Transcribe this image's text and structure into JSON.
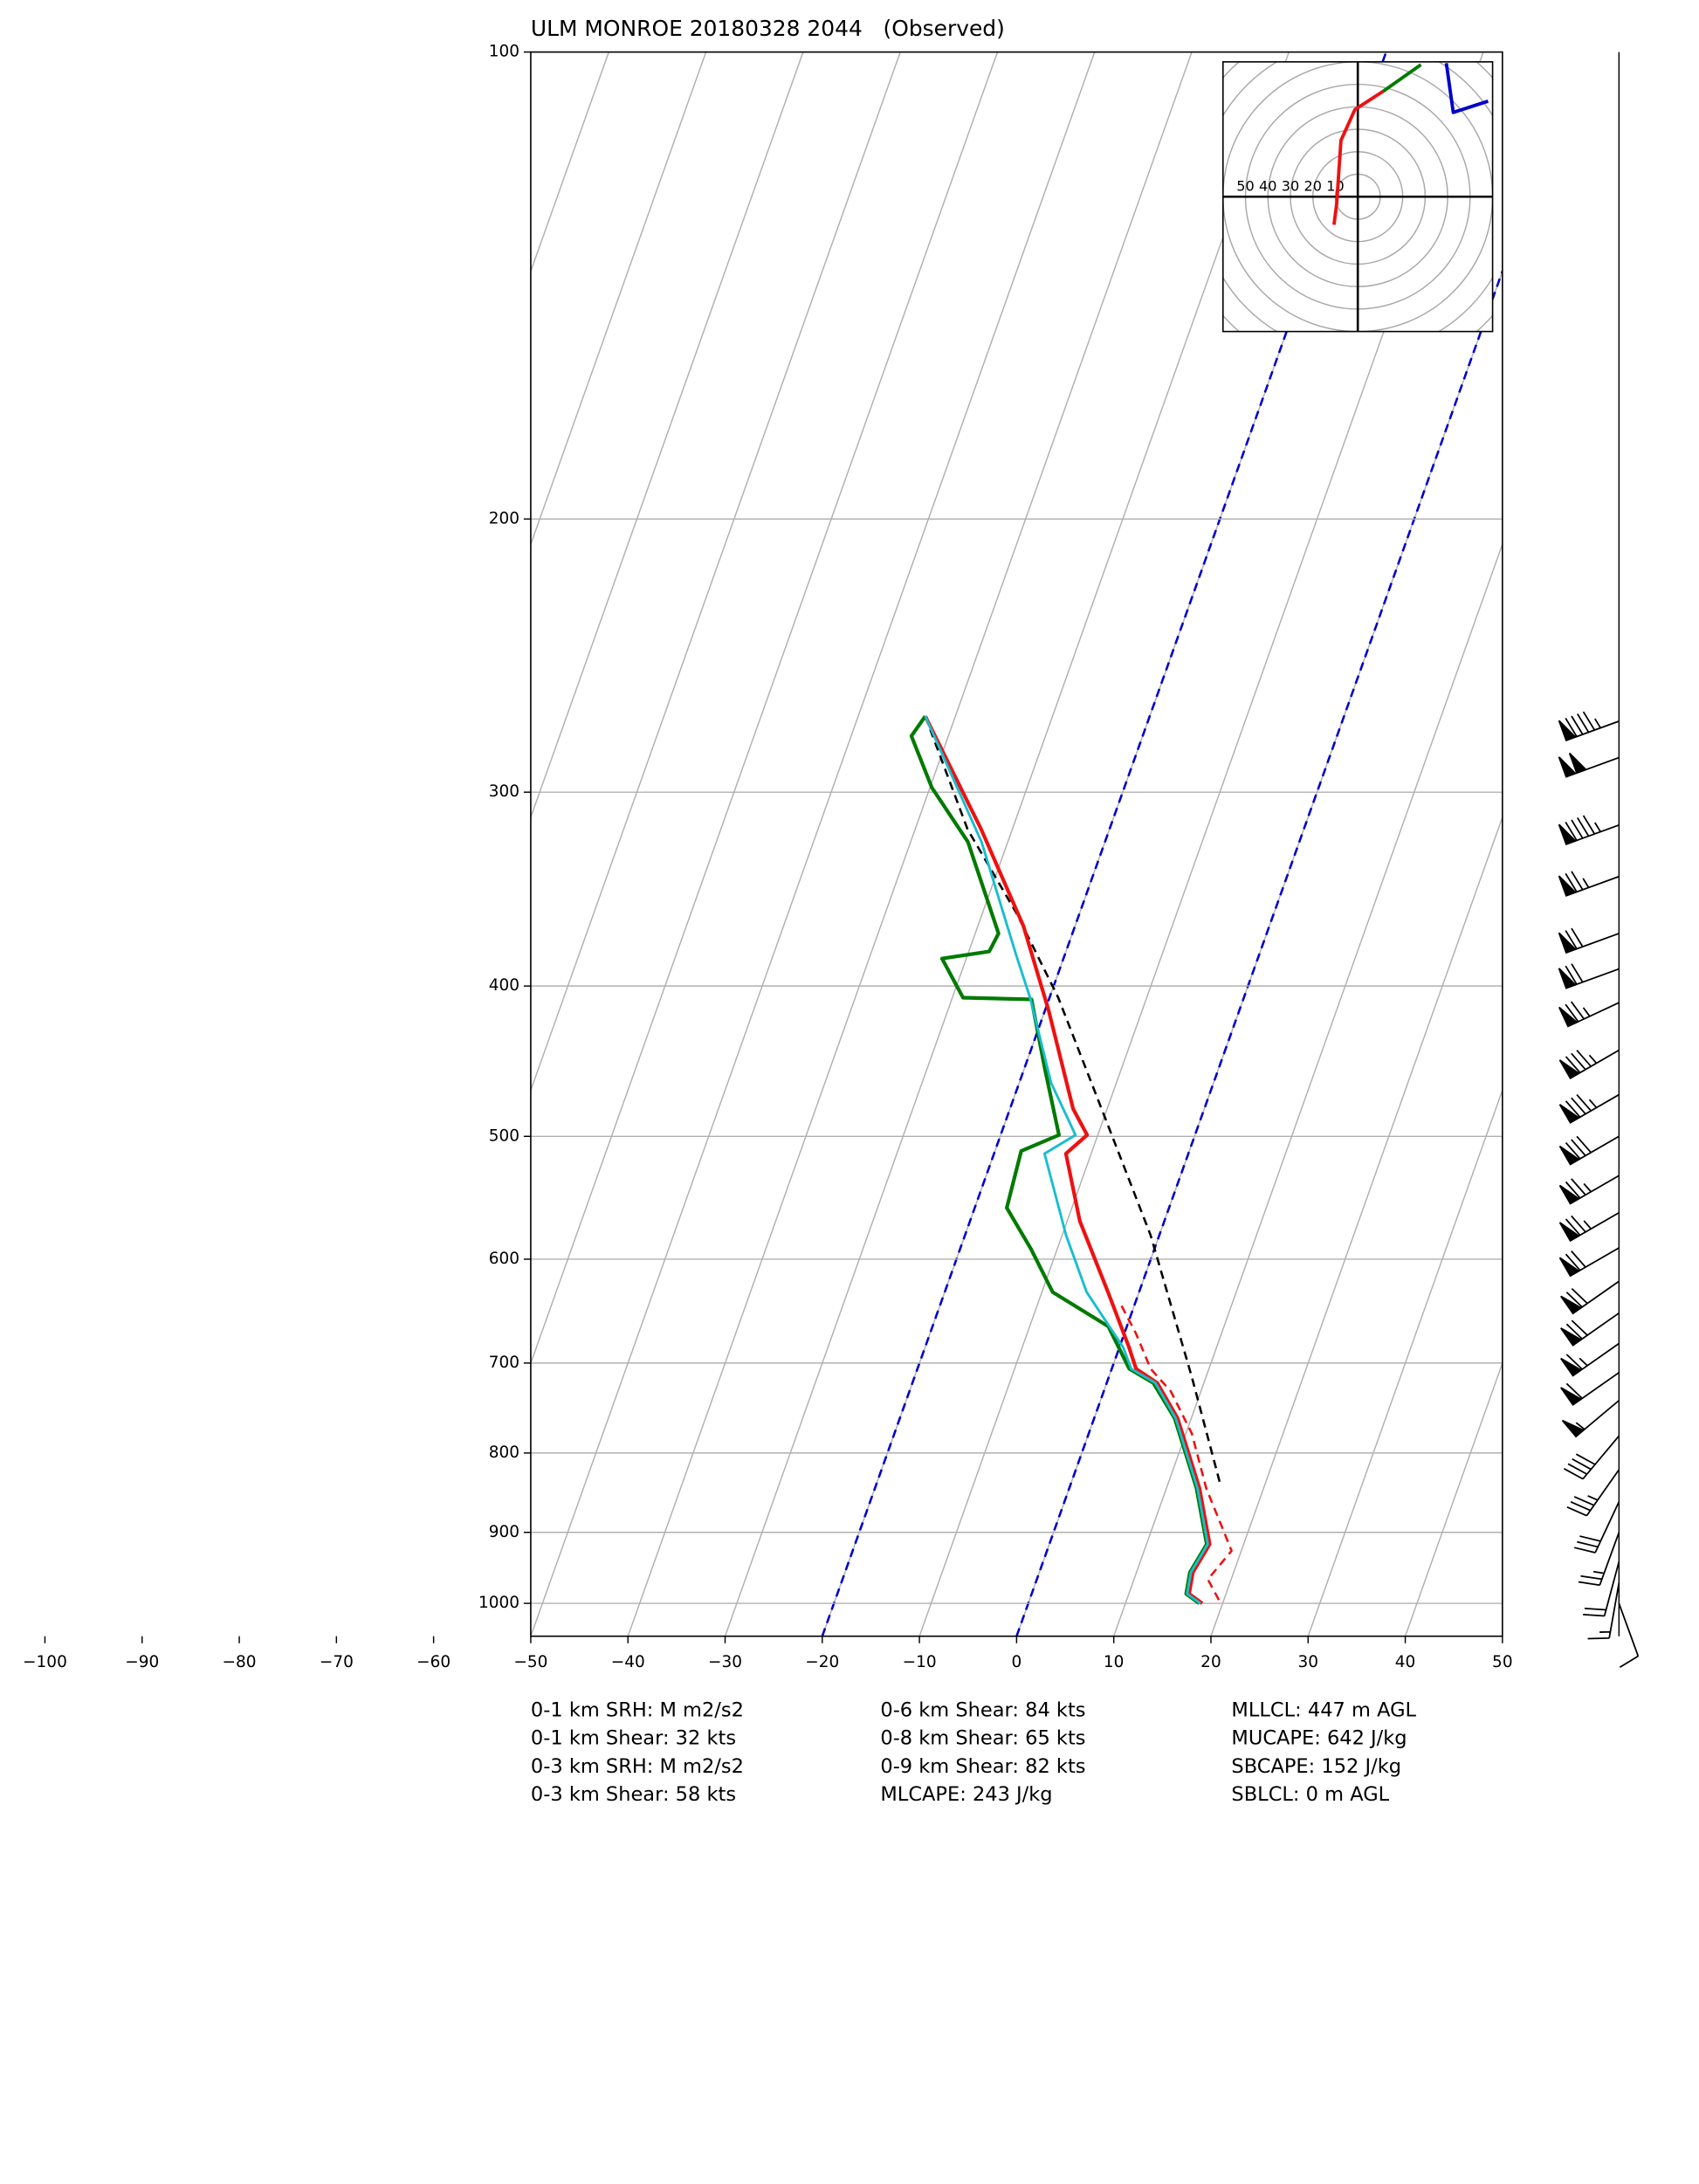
{
  "chart_data": {
    "type": "skewt",
    "title": "ULM MONROE 20180328 2044   (Observed)",
    "xlim": [
      -50,
      50
    ],
    "ylim": [
      1050,
      100
    ],
    "log_y": true,
    "grid": true,
    "xticks": [
      {
        "value": -100,
        "label": "−100"
      },
      {
        "value": -90,
        "label": "−90"
      },
      {
        "value": -80,
        "label": "−80"
      },
      {
        "value": -70,
        "label": "−70"
      },
      {
        "value": -60,
        "label": "−60"
      },
      {
        "value": -50,
        "label": "−50"
      },
      {
        "value": -40,
        "label": "−40"
      },
      {
        "value": -30,
        "label": "−30"
      },
      {
        "value": -20,
        "label": "−20"
      },
      {
        "value": -10,
        "label": "−10"
      },
      0,
      10,
      20,
      30,
      40,
      50
    ],
    "yticks": [
      100,
      200,
      300,
      400,
      500,
      600,
      700,
      800,
      900,
      1000
    ],
    "highlight_isotherms": {
      "values": [
        -20,
        0
      ],
      "color": "#0000cc"
    },
    "series": [
      {
        "color": "#ee1111",
        "style": "dashed",
        "width": 1.6,
        "pressure": [
          643,
          670,
          706,
          730,
          777,
          843,
          925,
          965,
          1000
        ],
        "values": [
          -1.3,
          1.2,
          4.0,
          6.9,
          10.6,
          14.1,
          19.0,
          17.6,
          19.8
        ]
      },
      {
        "color": "#000000",
        "style": "dashed",
        "width": 1.6,
        "pressure": [
          268,
          317,
          359,
          407,
          491,
          579,
          714,
          840
        ],
        "values": [
          -43.1,
          -34.6,
          -26.5,
          -19.1,
          -9.4,
          -0.9,
          8.5,
          15.5
        ]
      },
      {
        "color": "#ee1111",
        "style": "solid",
        "width": 2.6,
        "pressure": [
          268,
          317,
          366,
          415,
          480,
          499,
          513,
          567,
          630,
          684,
          706,
          721,
          760,
          843,
          916,
          955,
          986,
          1000
        ],
        "values": [
          -43.1,
          -33.2,
          -25.3,
          -19.6,
          -13.5,
          -11.1,
          -12.6,
          -8.7,
          -3.2,
          1.0,
          2.5,
          5.2,
          8.6,
          13.4,
          16.5,
          15.8,
          16.2,
          17.9
        ]
      },
      {
        "color": "#007a00",
        "style": "solid",
        "width": 2.6,
        "pressure": [
          268,
          276,
          298,
          323,
          370,
          380,
          384,
          407,
          408,
          452,
          499,
          511,
          556,
          591,
          630,
          663,
          706,
          721,
          760,
          843,
          916,
          955,
          986,
          1000
        ],
        "values": [
          -43.1,
          -43.8,
          -39.8,
          -34.1,
          -27.6,
          -27.9,
          -32.5,
          -28.9,
          -21.8,
          -17.9,
          -14.0,
          -17.3,
          -16.7,
          -12.7,
          -8.9,
          -1.9,
          1.8,
          4.8,
          8.3,
          13.1,
          16.2,
          15.5,
          15.9,
          17.6
        ]
      },
      {
        "color": "#17becf",
        "style": "solid",
        "width": 1.8,
        "pressure": [
          268,
          323,
          382,
          407,
          462,
          499,
          513,
          579,
          630,
          684,
          706,
          721,
          760,
          843,
          916,
          955,
          986,
          1000
        ],
        "values": [
          -43.1,
          -32.7,
          -25.0,
          -22.0,
          -16.7,
          -12.3,
          -14.8,
          -9.6,
          -5.4,
          0.4,
          2.0,
          5.0,
          8.4,
          13.2,
          16.3,
          15.6,
          16.0,
          17.7
        ]
      }
    ],
    "barbs": {
      "pressure": [
        270,
        285,
        315,
        340,
        370,
        390,
        410,
        440,
        470,
        500,
        530,
        560,
        590,
        620,
        650,
        680,
        710,
        740,
        780,
        820,
        860,
        900,
        940,
        970,
        1000
      ],
      "speed": [
        95,
        100,
        95,
        75,
        70,
        70,
        75,
        85,
        85,
        80,
        75,
        75,
        70,
        70,
        70,
        65,
        60,
        55,
        40,
        35,
        30,
        25,
        20,
        15,
        10
      ],
      "direction": [
        250,
        250,
        250,
        250,
        250,
        250,
        245,
        240,
        240,
        240,
        240,
        240,
        240,
        235,
        235,
        235,
        235,
        230,
        220,
        215,
        205,
        200,
        195,
        190,
        160
      ]
    },
    "hodograph": {
      "rings": [
        10,
        20,
        30,
        40,
        50,
        60,
        70,
        80
      ],
      "traces": [
        {
          "color": "#ee1111",
          "u": [
            -10.6,
            -9.4,
            -7.5,
            -1.3,
            11.3
          ],
          "v": [
            -12.5,
            -3.1,
            25,
            38.75,
            46.9
          ]
        },
        {
          "color": "#007a00",
          "u": [
            11.3,
            28.1
          ],
          "v": [
            46.9,
            58.75
          ]
        },
        {
          "color": "#0000cc",
          "u": [
            39.4,
            42.5,
            58
          ],
          "v": [
            59.4,
            37.5,
            42.5
          ]
        }
      ]
    },
    "stats": [
      [
        "0-1 km SRH: M m2/s2",
        "0-1 km Shear: 32 kts",
        "0-3 km SRH: M m2/s2",
        "0-3 km Shear: 58 kts"
      ],
      [
        "0-6 km Shear: 84 kts",
        "0-8 km Shear: 65 kts",
        "0-9 km Shear: 82 kts",
        "MLCAPE: 243 J/kg"
      ],
      [
        "MLLCL: 447 m AGL",
        "MUCAPE: 642 J/kg",
        "SBCAPE: 152 J/kg",
        "SBLCL: 0 m AGL"
      ]
    ]
  }
}
